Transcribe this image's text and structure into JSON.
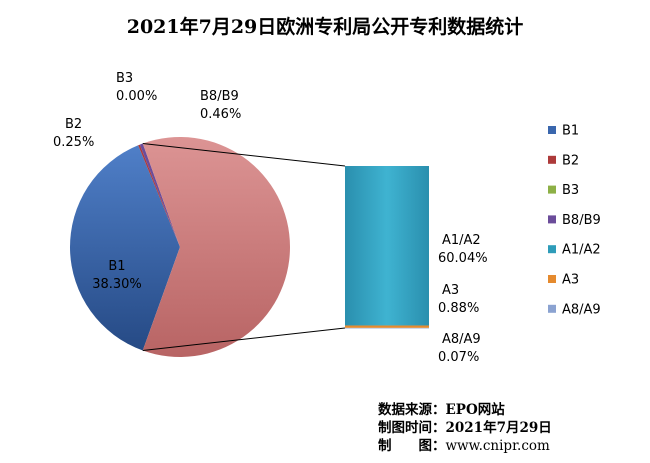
{
  "chart_data": {
    "type": "pie",
    "subtype": "bar-of-pie",
    "title": "2021年7月29日欧洲专利局公开专利数据统计",
    "unit": "%",
    "main_slices": [
      {
        "name": "B1",
        "value": 38.3,
        "label": "38.30%",
        "color": "#3a66ad"
      },
      {
        "name": "B2",
        "value": 0.25,
        "label": "0.25%",
        "color": "#ad3a3a"
      },
      {
        "name": "B3",
        "value": 0.0,
        "label": "0.00%",
        "color": "#8db046"
      },
      {
        "name": "B8/B9",
        "value": 0.46,
        "label": "0.46%",
        "color": "#6b4c9a"
      }
    ],
    "secondary_bar": [
      {
        "name": "A1/A2",
        "value": 60.04,
        "label": "60.04%",
        "color": "#2e9cb9"
      },
      {
        "name": "A3",
        "value": 0.88,
        "label": "0.88%",
        "color": "#e58a2e"
      },
      {
        "name": "A8/A9",
        "value": 0.07,
        "label": "0.07%",
        "color": "#8ba3d1"
      }
    ],
    "other_color": "#cd7d7d",
    "legend": {
      "position": "right",
      "entries": [
        {
          "name": "B1",
          "color": "#3a66ad"
        },
        {
          "name": "B2",
          "color": "#ad3a3a"
        },
        {
          "name": "B3",
          "color": "#8db046"
        },
        {
          "name": "B8/B9",
          "color": "#6b4c9a"
        },
        {
          "name": "A1/A2",
          "color": "#2e9cb9"
        },
        {
          "name": "A3",
          "color": "#e58a2e"
        },
        {
          "name": "A8/A9",
          "color": "#8ba3d1"
        }
      ]
    }
  },
  "source_info": {
    "line1": "数据来源：EPO网站",
    "line2": "制图时间：2021年7月29日",
    "line3_label": "制　　图：",
    "line3_value": "www.cnipr.com"
  }
}
